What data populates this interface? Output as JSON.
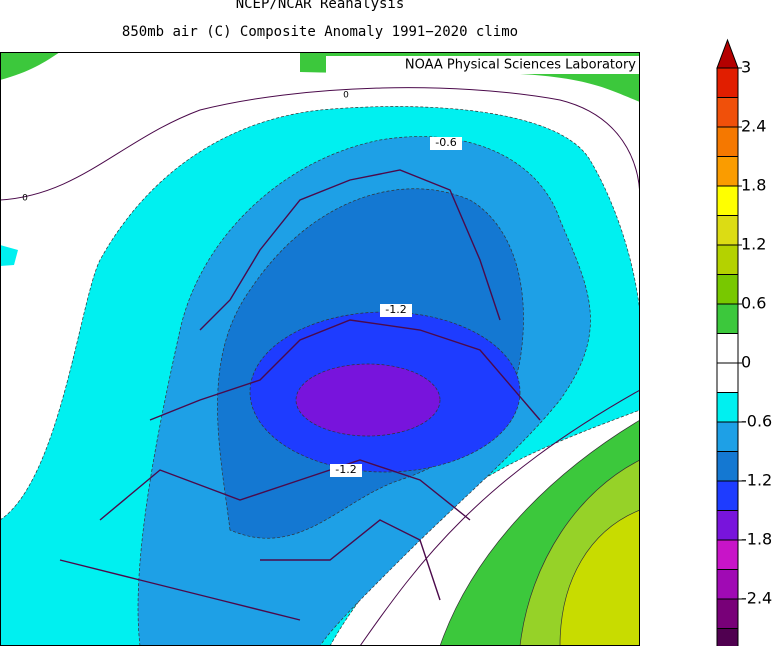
{
  "header": {
    "title": "NCEP/NCAR Reanalysis",
    "subtitle": "850mb air (C) Composite Anomaly 1991−2020 climo"
  },
  "map": {
    "credit": "NOAA Physical Sciences Laboratory",
    "contour_labels": [
      "-0.6",
      "-1.2",
      "-1.2",
      "0",
      "0"
    ]
  },
  "colorbar": {
    "labels": [
      "3",
      "2.4",
      "1.8",
      "1.2",
      "0.6",
      "0",
      "-0.6",
      "-1.2",
      "-1.8",
      "-2.4"
    ]
  }
}
